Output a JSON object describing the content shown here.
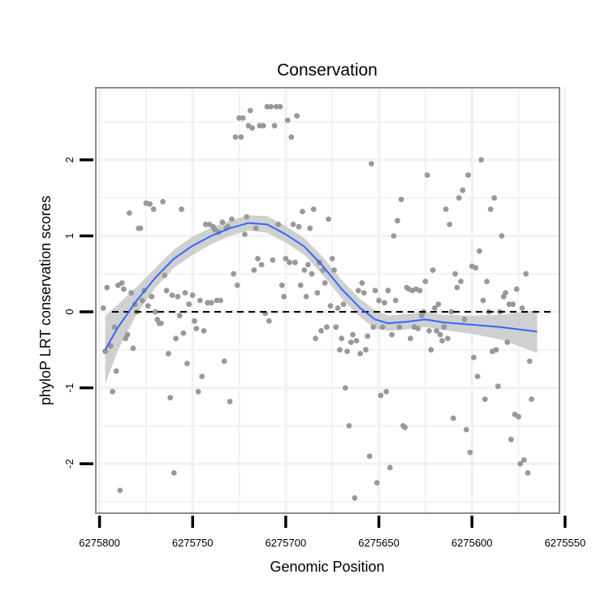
{
  "chart_data": {
    "type": "scatter",
    "title": "Conservation",
    "xlabel": "Genomic Position",
    "ylabel": "phyloP LRT conservation scores",
    "x_reversed": true,
    "xlim": [
      6275553,
      6275802
    ],
    "ylim": [
      -2.65,
      2.95
    ],
    "x_ticks": [
      6275800,
      6275750,
      6275700,
      6275650,
      6275600,
      6275550
    ],
    "x_tick_labels": [
      "6275800",
      "6275750",
      "6275700",
      "6275650",
      "6275600",
      "6275550"
    ],
    "y_ticks": [
      2,
      1,
      0,
      -1,
      -2
    ],
    "y_tick_labels": [
      "2",
      "1",
      "0",
      "-1",
      "-2"
    ],
    "reference_line_y": 0,
    "grid": true,
    "colors": {
      "points": "#999999",
      "smooth": "#3366ff",
      "ribbon": "#c8c8c8",
      "grid": "#f2f2f2",
      "panel_border": "#8c8c8c"
    },
    "points": [
      [
        6275798,
        0.05
      ],
      [
        6275797,
        -0.52
      ],
      [
        6275796,
        0.32
      ],
      [
        6275794,
        -0.45
      ],
      [
        6275793,
        -1.05
      ],
      [
        6275792,
        -0.2
      ],
      [
        6275791,
        -0.78
      ],
      [
        6275790,
        0.35
      ],
      [
        6275789,
        -2.35
      ],
      [
        6275788,
        0.38
      ],
      [
        6275787,
        0.3
      ],
      [
        6275786,
        -0.35
      ],
      [
        6275785,
        -0.3
      ],
      [
        6275784,
        1.3
      ],
      [
        6275783,
        0.25
      ],
      [
        6275782,
        -0.48
      ],
      [
        6275781,
        0.1
      ],
      [
        6275780,
        0.0
      ],
      [
        6275779,
        1.1
      ],
      [
        6275778,
        1.1
      ],
      [
        6275777,
        0.15
      ],
      [
        6275776,
        0.28
      ],
      [
        6275775,
        1.43
      ],
      [
        6275774,
        0.08
      ],
      [
        6275773,
        1.42
      ],
      [
        6275772,
        0.2
      ],
      [
        6275771,
        1.35
      ],
      [
        6275770,
        0.0
      ],
      [
        6275769,
        -0.1
      ],
      [
        6275768,
        -0.15
      ],
      [
        6275767,
        -0.15
      ],
      [
        6275766,
        1.45
      ],
      [
        6275765,
        0.48
      ],
      [
        6275764,
        0.28
      ],
      [
        6275763,
        -0.55
      ],
      [
        6275762,
        -1.13
      ],
      [
        6275761,
        0.22
      ],
      [
        6275760,
        -2.12
      ],
      [
        6275759,
        -0.35
      ],
      [
        6275758,
        0.2
      ],
      [
        6275757,
        -0.05
      ],
      [
        6275756,
        1.35
      ],
      [
        6275755,
        -0.28
      ],
      [
        6275754,
        0.25
      ],
      [
        6275753,
        -0.68
      ],
      [
        6275752,
        0.1
      ],
      [
        6275750,
        0.22
      ],
      [
        6275749,
        -0.12
      ],
      [
        6275748,
        -0.22
      ],
      [
        6275747,
        -1.05
      ],
      [
        6275746,
        0.15
      ],
      [
        6275745,
        -0.85
      ],
      [
        6275744,
        -0.25
      ],
      [
        6275743,
        1.15
      ],
      [
        6275742,
        0.12
      ],
      [
        6275741,
        1.15
      ],
      [
        6275740,
        0.12
      ],
      [
        6275739,
        1.12
      ],
      [
        6275738,
        1.08
      ],
      [
        6275737,
        0.15
      ],
      [
        6275736,
        1.05
      ],
      [
        6275735,
        0.15
      ],
      [
        6275734,
        1.18
      ],
      [
        6275733,
        -0.65
      ],
      [
        6275732,
        1.1
      ],
      [
        6275731,
        1.12
      ],
      [
        6275730,
        -1.18
      ],
      [
        6275729,
        1.22
      ],
      [
        6275728,
        0.5
      ],
      [
        6275727,
        2.3
      ],
      [
        6275726,
        0.35
      ],
      [
        6275725,
        2.55
      ],
      [
        6275724,
        2.3
      ],
      [
        6275723,
        2.55
      ],
      [
        6275722,
        1.02
      ],
      [
        6275721,
        1.25
      ],
      [
        6275720,
        2.45
      ],
      [
        6275719,
        2.65
      ],
      [
        6275718,
        2.42
      ],
      [
        6275717,
        0.55
      ],
      [
        6275716,
        1.1
      ],
      [
        6275715,
        0.7
      ],
      [
        6275714,
        2.45
      ],
      [
        6275713,
        0.62
      ],
      [
        6275712,
        2.45
      ],
      [
        6275711,
        -0.02
      ],
      [
        6275710,
        2.7
      ],
      [
        6275709,
        -0.12
      ],
      [
        6275708,
        2.7
      ],
      [
        6275707,
        0.68
      ],
      [
        6275706,
        2.45
      ],
      [
        6275705,
        2.7
      ],
      [
        6275704,
        1.15
      ],
      [
        6275703,
        2.7
      ],
      [
        6275702,
        0.35
      ],
      [
        6275701,
        0.2
      ],
      [
        6275700,
        0.7
      ],
      [
        6275699,
        2.52
      ],
      [
        6275698,
        0.65
      ],
      [
        6275697,
        2.3
      ],
      [
        6275696,
        1.15
      ],
      [
        6275695,
        0.65
      ],
      [
        6275694,
        2.58
      ],
      [
        6275693,
        1.12
      ],
      [
        6275692,
        0.35
      ],
      [
        6275691,
        1.32
      ],
      [
        6275690,
        0.55
      ],
      [
        6275689,
        0.2
      ],
      [
        6275688,
        0.62
      ],
      [
        6275687,
        1.1
      ],
      [
        6275686,
        0.5
      ],
      [
        6275685,
        1.35
      ],
      [
        6275684,
        -0.35
      ],
      [
        6275683,
        0.25
      ],
      [
        6275682,
        0.65
      ],
      [
        6275681,
        -0.25
      ],
      [
        6275680,
        0.55
      ],
      [
        6275679,
        0.38
      ],
      [
        6275678,
        -0.2
      ],
      [
        6275677,
        1.22
      ],
      [
        6275676,
        0.08
      ],
      [
        6275675,
        0.7
      ],
      [
        6275674,
        0.55
      ],
      [
        6275673,
        -0.2
      ],
      [
        6275672,
        0.05
      ],
      [
        6275671,
        -0.5
      ],
      [
        6275670,
        -0.35
      ],
      [
        6275669,
        0.1
      ],
      [
        6275668,
        -1.0
      ],
      [
        6275667,
        -0.52
      ],
      [
        6275666,
        -1.5
      ],
      [
        6275665,
        -0.4
      ],
      [
        6275664,
        -0.3
      ],
      [
        6275663,
        -2.45
      ],
      [
        6275662,
        -0.38
      ],
      [
        6275661,
        0.28
      ],
      [
        6275660,
        -0.55
      ],
      [
        6275659,
        0.38
      ],
      [
        6275658,
        0.25
      ],
      [
        6275657,
        -0.5
      ],
      [
        6275656,
        -0.32
      ],
      [
        6275655,
        -1.9
      ],
      [
        6275654,
        1.95
      ],
      [
        6275653,
        -0.2
      ],
      [
        6275652,
        0.28
      ],
      [
        6275651,
        -2.25
      ],
      [
        6275650,
        0.15
      ],
      [
        6275649,
        -1.1
      ],
      [
        6275648,
        -0.2
      ],
      [
        6275647,
        0.12
      ],
      [
        6275646,
        -1.05
      ],
      [
        6275645,
        0.28
      ],
      [
        6275644,
        -2.05
      ],
      [
        6275643,
        -0.3
      ],
      [
        6275642,
        1.0
      ],
      [
        6275641,
        0.15
      ],
      [
        6275640,
        1.2
      ],
      [
        6275639,
        -0.2
      ],
      [
        6275638,
        1.48
      ],
      [
        6275637,
        -1.5
      ],
      [
        6275636,
        -1.52
      ],
      [
        6275635,
        0.32
      ],
      [
        6275634,
        0.3
      ],
      [
        6275633,
        -0.35
      ],
      [
        6275632,
        0.28
      ],
      [
        6275631,
        -0.2
      ],
      [
        6275630,
        0.3
      ],
      [
        6275629,
        -0.22
      ],
      [
        6275628,
        0.28
      ],
      [
        6275627,
        -0.05
      ],
      [
        6275626,
        0.0
      ],
      [
        6275625,
        0.4
      ],
      [
        6275624,
        1.8
      ],
      [
        6275623,
        -0.25
      ],
      [
        6275622,
        -0.5
      ],
      [
        6275621,
        0.55
      ],
      [
        6275620,
        0.05
      ],
      [
        6275619,
        -0.25
      ],
      [
        6275618,
        0.1
      ],
      [
        6275617,
        -0.3
      ],
      [
        6275616,
        -0.38
      ],
      [
        6275615,
        -0.2
      ],
      [
        6275614,
        1.35
      ],
      [
        6275613,
        -0.35
      ],
      [
        6275612,
        1.15
      ],
      [
        6275611,
        0.0
      ],
      [
        6275610,
        -1.4
      ],
      [
        6275609,
        0.5
      ],
      [
        6275608,
        0.32
      ],
      [
        6275607,
        1.5
      ],
      [
        6275606,
        0.4
      ],
      [
        6275605,
        1.6
      ],
      [
        6275604,
        -0.1
      ],
      [
        6275603,
        -1.55
      ],
      [
        6275602,
        1.8
      ],
      [
        6275601,
        -1.85
      ],
      [
        6275600,
        0.6
      ],
      [
        6275599,
        -0.6
      ],
      [
        6275598,
        0.58
      ],
      [
        6275597,
        -0.85
      ],
      [
        6275596,
        0.8
      ],
      [
        6275595,
        2.0
      ],
      [
        6275594,
        0.15
      ],
      [
        6275593,
        -1.15
      ],
      [
        6275592,
        0.4
      ],
      [
        6275591,
        0.0
      ],
      [
        6275590,
        1.35
      ],
      [
        6275589,
        -0.52
      ],
      [
        6275588,
        1.5
      ],
      [
        6275587,
        -0.5
      ],
      [
        6275586,
        -0.98
      ],
      [
        6275585,
        0.0
      ],
      [
        6275584,
        1.0
      ],
      [
        6275583,
        0.2
      ],
      [
        6275582,
        0.25
      ],
      [
        6275581,
        -0.4
      ],
      [
        6275580,
        0.1
      ],
      [
        6275579,
        -1.68
      ],
      [
        6275578,
        0.1
      ],
      [
        6275577,
        -1.35
      ],
      [
        6275576,
        0.3
      ],
      [
        6275575,
        -1.38
      ],
      [
        6275574,
        -2.0
      ],
      [
        6275573,
        0.05
      ],
      [
        6275572,
        -1.95
      ],
      [
        6275571,
        0.5
      ],
      [
        6275570,
        -2.12
      ],
      [
        6275569,
        -0.65
      ],
      [
        6275568,
        -1.15
      ]
    ],
    "smooth": [
      [
        6275797,
        -0.5
      ],
      [
        6275790,
        -0.2
      ],
      [
        6275780,
        0.15
      ],
      [
        6275770,
        0.45
      ],
      [
        6275760,
        0.7
      ],
      [
        6275750,
        0.87
      ],
      [
        6275740,
        1.0
      ],
      [
        6275730,
        1.1
      ],
      [
        6275720,
        1.17
      ],
      [
        6275710,
        1.15
      ],
      [
        6275700,
        1.02
      ],
      [
        6275690,
        0.86
      ],
      [
        6275680,
        0.6
      ],
      [
        6275670,
        0.3
      ],
      [
        6275660,
        0.05
      ],
      [
        6275652,
        -0.1
      ],
      [
        6275645,
        -0.15
      ],
      [
        6275635,
        -0.13
      ],
      [
        6275625,
        -0.1
      ],
      [
        6275615,
        -0.14
      ],
      [
        6275600,
        -0.17
      ],
      [
        6275585,
        -0.2
      ],
      [
        6275565,
        -0.26
      ]
    ],
    "ribbon_halfwidth": [
      [
        6275797,
        0.45
      ],
      [
        6275790,
        0.3
      ],
      [
        6275780,
        0.18
      ],
      [
        6275770,
        0.13
      ],
      [
        6275760,
        0.12
      ],
      [
        6275750,
        0.12
      ],
      [
        6275740,
        0.11
      ],
      [
        6275730,
        0.1
      ],
      [
        6275720,
        0.1
      ],
      [
        6275710,
        0.11
      ],
      [
        6275700,
        0.11
      ],
      [
        6275690,
        0.11
      ],
      [
        6275680,
        0.12
      ],
      [
        6275670,
        0.12
      ],
      [
        6275660,
        0.12
      ],
      [
        6275652,
        0.12
      ],
      [
        6275645,
        0.1
      ],
      [
        6275635,
        0.1
      ],
      [
        6275625,
        0.1
      ],
      [
        6275615,
        0.1
      ],
      [
        6275600,
        0.12
      ],
      [
        6275585,
        0.16
      ],
      [
        6275565,
        0.28
      ]
    ]
  }
}
